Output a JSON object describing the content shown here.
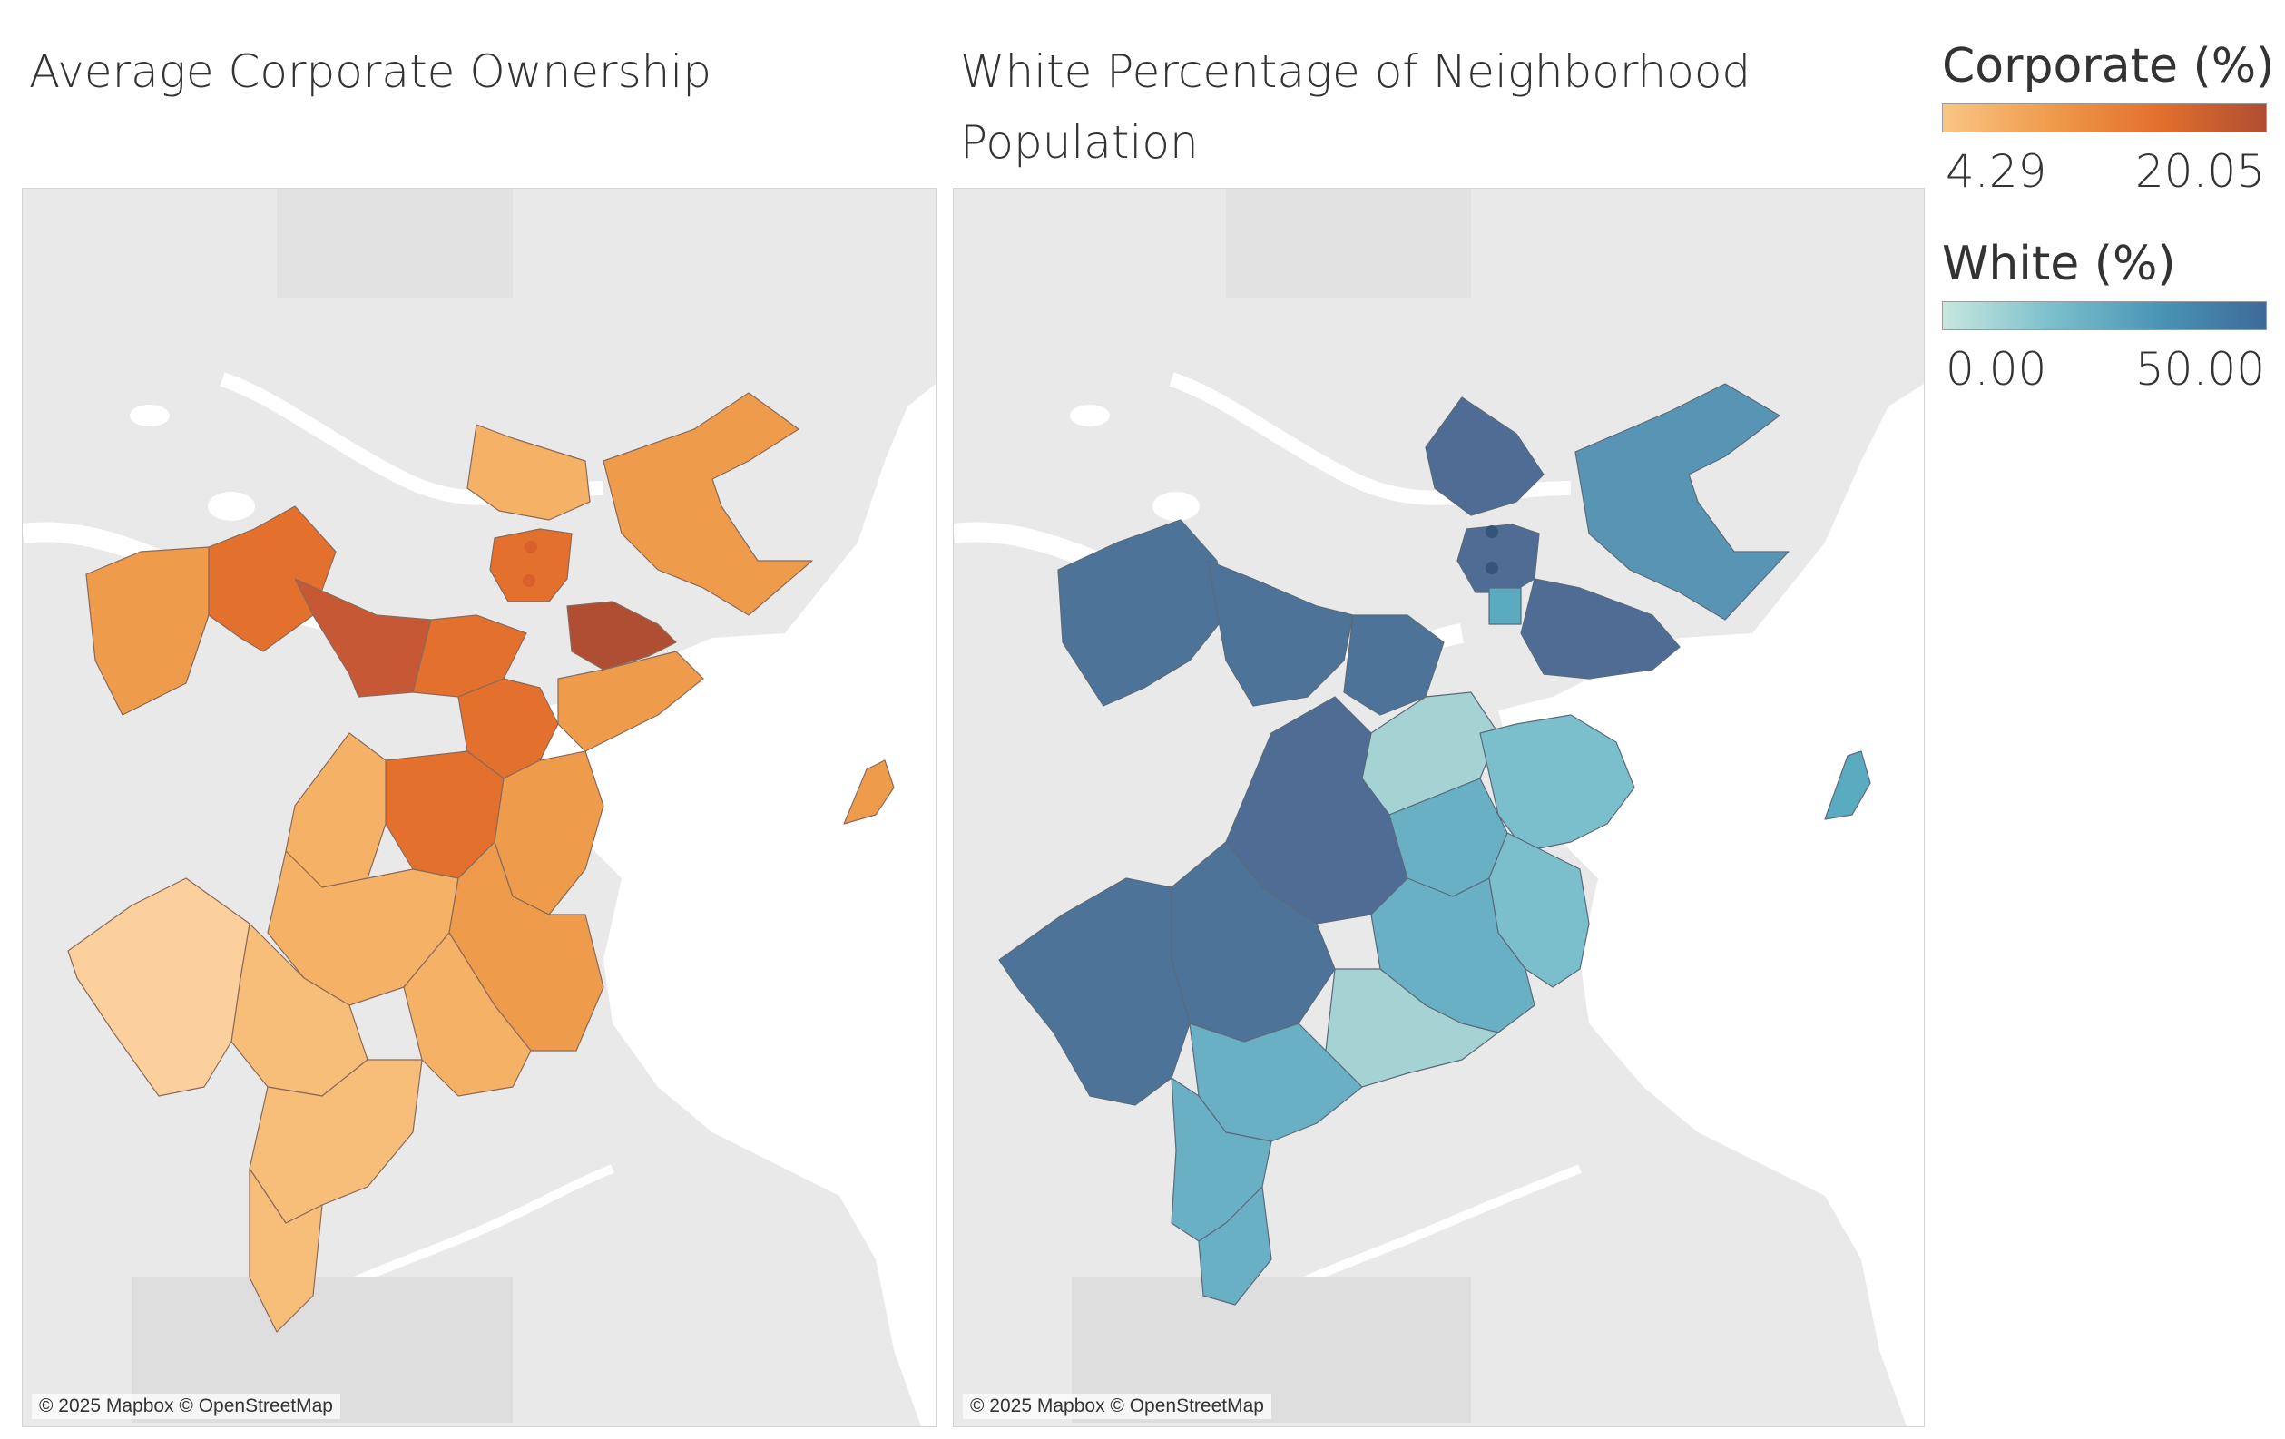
{
  "titles": {
    "left": "Average Corporate Ownership",
    "right": "White Percentage of Neighborhood Population"
  },
  "maps": {
    "attribution": "© 2025 Mapbox © OpenStreetMap",
    "basemap_colors": {
      "land": "#e9e9e9",
      "water": "#ffffff",
      "park": "#dedede"
    }
  },
  "legends": {
    "corporate": {
      "title": "Corporate (%)",
      "min": "4.29",
      "max": "20.05",
      "colors": [
        "#f9c684",
        "#ef9b4c",
        "#e3702c",
        "#b04e33"
      ]
    },
    "white": {
      "title": "White (%)",
      "min": "0.00",
      "max": "50.00",
      "colors": [
        "#c8e7df",
        "#7cc0cc",
        "#4a95b6",
        "#3d6a98"
      ]
    }
  }
}
